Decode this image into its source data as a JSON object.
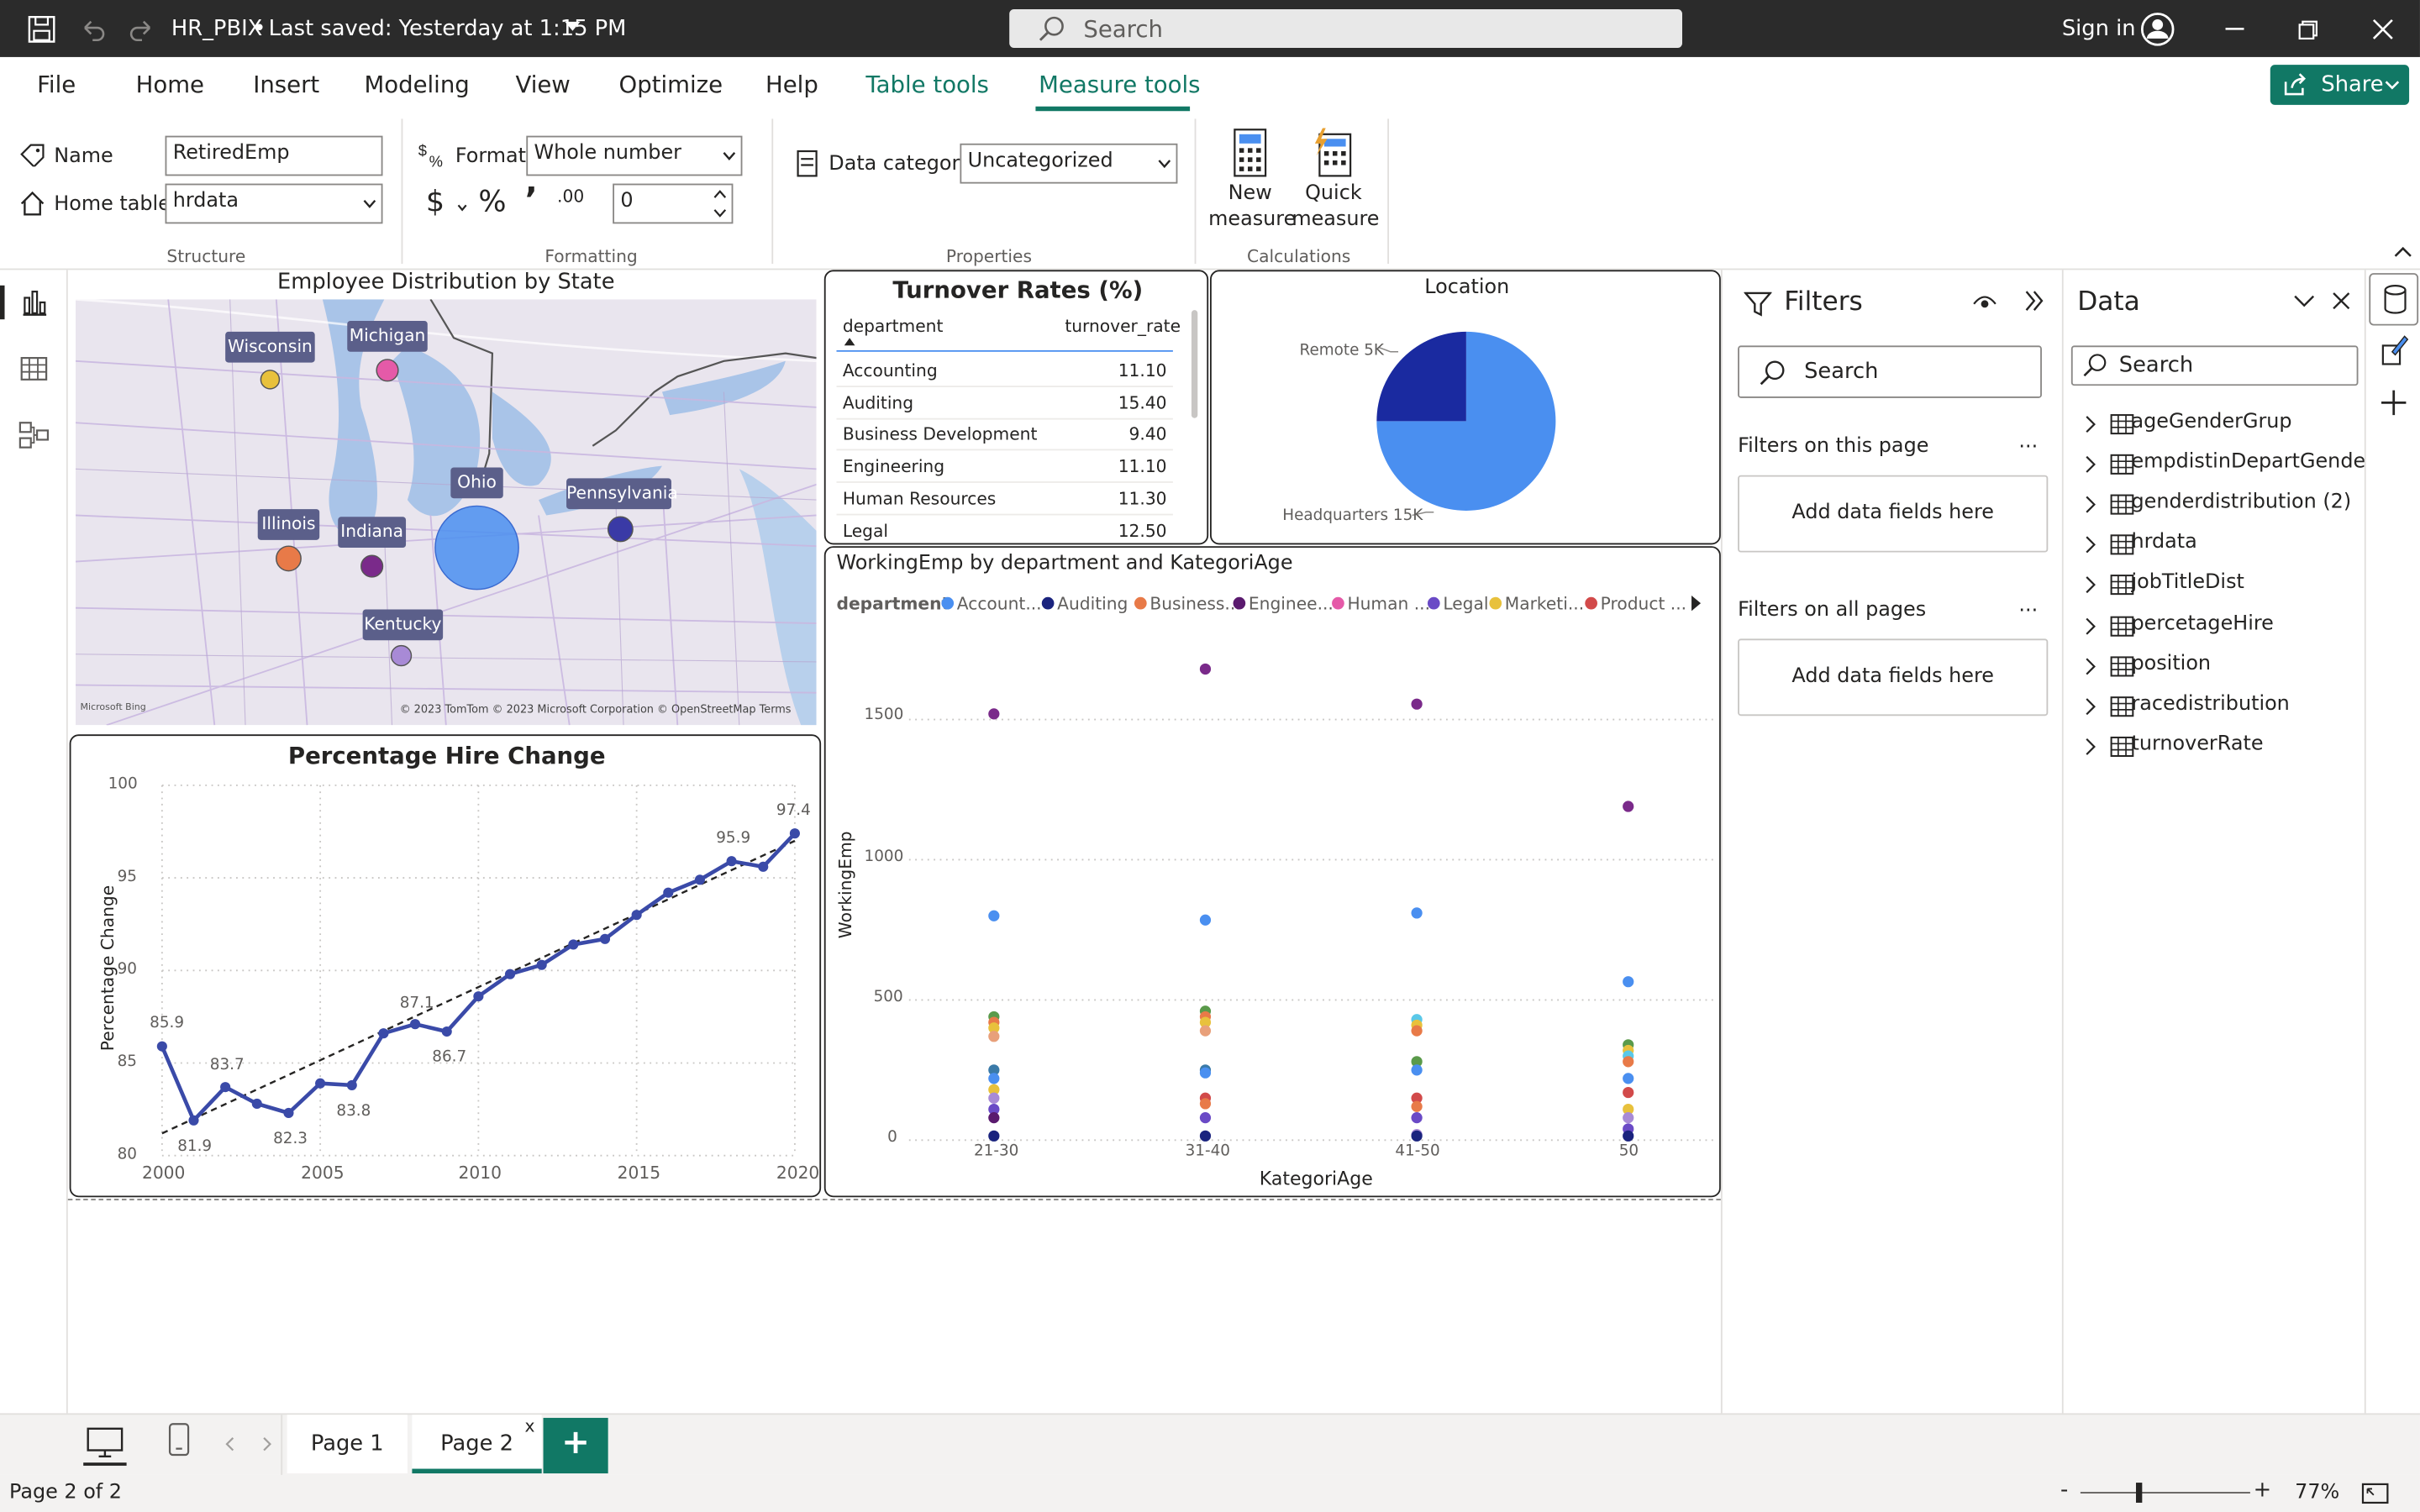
{
  "titlebar": {
    "file_title": "HR_PBIX",
    "save_status": "Last saved: Yesterday at 1:15 PM",
    "search_placeholder": "Search",
    "sign_in": "Sign in"
  },
  "ribbon_tabs": [
    "File",
    "Home",
    "Insert",
    "Modeling",
    "View",
    "Optimize",
    "Help",
    "Table tools",
    "Measure tools"
  ],
  "share_label": "Share",
  "structure": {
    "name_label": "Name",
    "name_value": "RetiredEmp",
    "home_table_label": "Home table",
    "home_table_value": "hrdata",
    "group_label": "Structure"
  },
  "formatting": {
    "format_label": "Format",
    "format_value": "Whole number",
    "currency_symbol": "$",
    "percent_symbol": "%",
    "comma_symbol": "’",
    "decimal_symbol": ".00",
    "decimals_value": "0",
    "group_label": "Formatting"
  },
  "properties": {
    "data_category_label": "Data category",
    "data_category_value": "Uncategorized",
    "group_label": "Properties"
  },
  "calculations": {
    "new_measure": [
      "New",
      "measure"
    ],
    "quick_measure": [
      "Quick",
      "measure"
    ],
    "group_label": "Calculations"
  },
  "map_visual": {
    "title": "Employee Distribution by State",
    "states": [
      "Wisconsin",
      "Michigan",
      "Ohio",
      "Pennsylvania",
      "Illinois",
      "Indiana",
      "Kentucky"
    ],
    "attribution": "© 2023 TomTom  © 2023 Microsoft Corporation  © OpenStreetMap   Terms",
    "logo": "Microsoft Bing",
    "colors": {
      "Wisconsin": "#e8c13c",
      "Michigan": "#e55aa8",
      "Ohio": "#4a8ff0",
      "Pennsylvania": "#3a3aa6",
      "Illinois": "#e87a48",
      "Indiana": "#7a2a8a",
      "Kentucky": "#a88ad6"
    }
  },
  "turnover_table": {
    "title": "Turnover Rates (%)",
    "columns": [
      "department",
      "turnover_rate"
    ],
    "rows": [
      [
        "Accounting",
        "11.10"
      ],
      [
        "Auditing",
        "15.40"
      ],
      [
        "Business Development",
        "9.40"
      ],
      [
        "Engineering",
        "11.10"
      ],
      [
        "Human Resources",
        "11.30"
      ],
      [
        "Legal",
        "12.50"
      ]
    ]
  },
  "location_pie": {
    "title": "Location",
    "labels": [
      "Remote 5K",
      "Headquarters 15K"
    ]
  },
  "line_chart": {
    "title": "Percentage Hire Change",
    "ylabel": "Percentage Change",
    "yticks": [
      "100",
      "95",
      "90",
      "85",
      "80"
    ],
    "xticks": [
      "2000",
      "2005",
      "2010",
      "2015",
      "2020"
    ],
    "data_labels": [
      {
        "text": "85.9"
      },
      {
        "text": "81.9"
      },
      {
        "text": "83.7"
      },
      {
        "text": "82.3"
      },
      {
        "text": "83.8"
      },
      {
        "text": "87.1"
      },
      {
        "text": "86.7"
      },
      {
        "text": "95.9"
      },
      {
        "text": "97.4"
      }
    ]
  },
  "scatter_chart": {
    "title": "WorkingEmp by department and KategoriAge",
    "legend_title": "department",
    "legend": [
      "Account...",
      "Auditing",
      "Business...",
      "Enginee...",
      "Human ...",
      "Legal",
      "Marketi...",
      "Product ..."
    ],
    "legend_colors": [
      "#4a8ff0",
      "#1a237e",
      "#e87a48",
      "#5a1a6e",
      "#e55aa8",
      "#6a4ac6",
      "#e8c13c",
      "#d24a4a"
    ],
    "xlabel": "KategoriAge",
    "ylabel": "WorkingEmp",
    "xticks": [
      "21-30",
      "31-40",
      "41-50",
      "50"
    ],
    "yticks": [
      "1500",
      "1000",
      "500",
      "0"
    ]
  },
  "chart_data": [
    {
      "type": "line",
      "title": "Percentage Hire Change",
      "ylabel": "Percentage Change",
      "xlabel": "",
      "x": [
        2000,
        2001,
        2002,
        2003,
        2004,
        2005,
        2006,
        2007,
        2008,
        2009,
        2010,
        2011,
        2012,
        2013,
        2014,
        2015,
        2016,
        2017,
        2018,
        2019,
        2020
      ],
      "series": [
        {
          "values": [
            85.9,
            81.9,
            83.7,
            82.8,
            82.3,
            83.9,
            83.8,
            86.6,
            87.1,
            86.7,
            88.6,
            89.8,
            90.3,
            91.4,
            91.7,
            93.0,
            94.2,
            94.9,
            95.9,
            95.6,
            97.4
          ]
        }
      ],
      "trendline": {
        "x": [
          2000,
          2020
        ],
        "values": [
          81.2,
          97.0
        ]
      },
      "xlim": [
        2000,
        2020
      ],
      "ylim": [
        80,
        100
      ]
    },
    {
      "type": "scatter",
      "title": "WorkingEmp by department and KategoriAge",
      "xlabel": "KategoriAge",
      "ylabel": "WorkingEmp",
      "categories": [
        "21-30",
        "31-40",
        "41-50",
        "50"
      ],
      "ylim": [
        0,
        1700
      ],
      "points": [
        {
          "cat": "21-30",
          "values": [
            1520,
            800,
            440,
            420,
            400,
            370,
            250,
            220,
            180,
            150,
            110,
            80,
            15
          ]
        },
        {
          "cat": "31-40",
          "values": [
            1680,
            785,
            460,
            440,
            420,
            390,
            250,
            240,
            150,
            130,
            80,
            15
          ]
        },
        {
          "cat": "41-50",
          "values": [
            1555,
            810,
            430,
            410,
            390,
            280,
            250,
            150,
            120,
            80,
            20,
            15
          ]
        },
        {
          "cat": "50",
          "values": [
            1190,
            565,
            340,
            320,
            300,
            280,
            220,
            170,
            110,
            80,
            40,
            15
          ]
        }
      ],
      "point_colors": {
        "21-30": [
          "#7a2a8a",
          "#4a8ff0",
          "#5a9a4a",
          "#e87a48",
          "#e8c13c",
          "#e8a07a",
          "#3a7aa8",
          "#4a8ff0",
          "#e8c13c",
          "#a88ad6",
          "#6a4ac6",
          "#5a1a6e",
          "#1a237e"
        ],
        "31-40": [
          "#7a2a8a",
          "#4a8ff0",
          "#5a9a4a",
          "#e87a48",
          "#e8c13c",
          "#e8a07a",
          "#3a7aa8",
          "#4a8ff0",
          "#d24a4a",
          "#e87a48",
          "#6a4ac6",
          "#1a237e"
        ],
        "41-50": [
          "#7a2a8a",
          "#4a8ff0",
          "#5ac8e8",
          "#e8c13c",
          "#e87a48",
          "#5a9a4a",
          "#4a8ff0",
          "#d24a4a",
          "#e87a48",
          "#6a4ac6",
          "#a88ad6",
          "#1a237e"
        ],
        "50": [
          "#7a2a8a",
          "#4a8ff0",
          "#5a9a4a",
          "#e8c13c",
          "#5ac8e8",
          "#e87a48",
          "#4a8ff0",
          "#d24a4a",
          "#e8c13c",
          "#a88ad6",
          "#6a4ac6",
          "#1a237e"
        ]
      }
    },
    {
      "type": "pie",
      "title": "Location",
      "labels": [
        "Remote",
        "Headquarters"
      ],
      "values": [
        5000,
        15000
      ],
      "colors": [
        "#1a2aa0",
        "#4a8ff0"
      ]
    }
  ],
  "filters": {
    "title": "Filters",
    "search_placeholder": "Search",
    "on_this_page": "Filters on this page",
    "on_all_pages": "Filters on all pages",
    "add_fields": "Add data fields here",
    "more": "..."
  },
  "data_pane": {
    "title": "Data",
    "search_placeholder": "Search",
    "tables": [
      "ageGenderGrup",
      "empdistinDepartGender",
      "genderdistribution (2)",
      "hrdata",
      "jobTitleDist",
      "percetageHire",
      "position",
      "racedistribution",
      "turnoverRate"
    ]
  },
  "pages": {
    "tabs": [
      "Page 1",
      "Page 2"
    ],
    "close": "x",
    "add": "+"
  },
  "status": {
    "page_info": "Page 2 of 2",
    "zoom": "77%",
    "minus": "-",
    "plus": "+"
  }
}
